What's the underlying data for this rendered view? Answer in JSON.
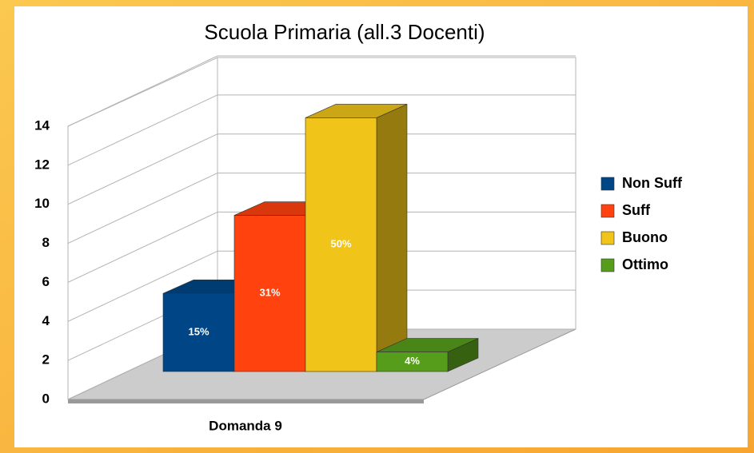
{
  "chart_data": {
    "type": "bar3d",
    "title": "Scuola Primaria (all.3 Docenti)",
    "categories": [
      "Domanda 9"
    ],
    "series": [
      {
        "name": "Non Suff",
        "color": "#004586",
        "values": [
          4
        ],
        "value_labels": [
          "15%"
        ]
      },
      {
        "name": "Suff",
        "color": "#ff420e",
        "values": [
          8
        ],
        "value_labels": [
          "31%"
        ]
      },
      {
        "name": "Buono",
        "color": "#f0c419",
        "values": [
          13
        ],
        "value_labels": [
          "50%"
        ]
      },
      {
        "name": "Ottimo",
        "color": "#579d1c",
        "values": [
          1
        ],
        "value_labels": [
          "4%"
        ]
      }
    ],
    "ylim": [
      0,
      14
    ],
    "yticks": [
      0,
      2,
      4,
      6,
      8,
      10,
      12,
      14
    ],
    "grid": true,
    "legend": "right"
  }
}
